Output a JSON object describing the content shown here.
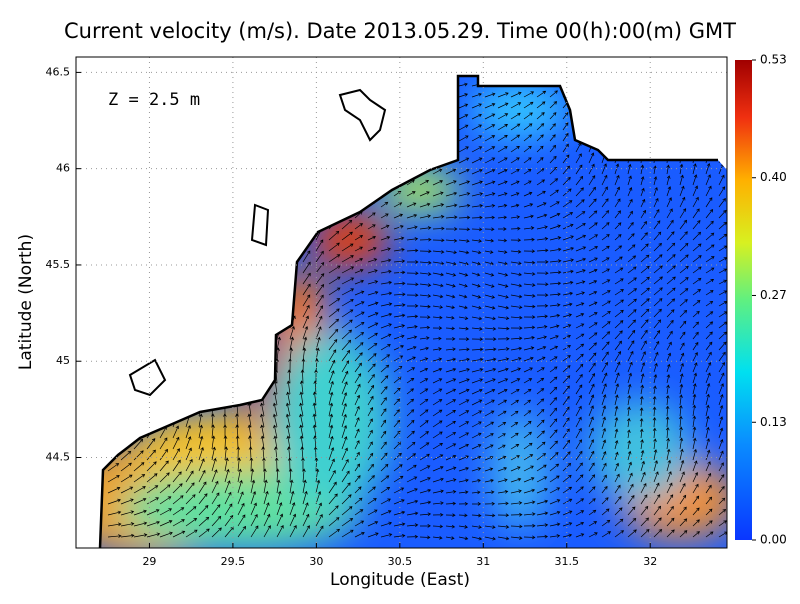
{
  "title": "Current velocity (m/s). Date 2013.05.29. Time 00(h):00(m) GMT",
  "annotation": "Z = 2.5 m",
  "x_axis": {
    "label": "Longitude (East)",
    "lim": [
      28.56,
      32.46
    ],
    "ticks": [
      29,
      29.5,
      30,
      30.5,
      31,
      31.5,
      32
    ]
  },
  "y_axis": {
    "label": "Latitude (North)",
    "lim": [
      44.03,
      46.58
    ],
    "ticks": [
      44.5,
      45,
      45.5,
      46,
      46.5
    ]
  },
  "colorbar": {
    "lim": [
      0,
      0.53
    ],
    "ticks": [
      {
        "value": 0,
        "label": "0.00"
      },
      {
        "value": 0.13,
        "label": "0.13"
      },
      {
        "value": 0.27,
        "label": "0.27"
      },
      {
        "value": 0.4,
        "label": "0.40"
      },
      {
        "value": 0.53,
        "label": "0.53"
      }
    ]
  }
}
